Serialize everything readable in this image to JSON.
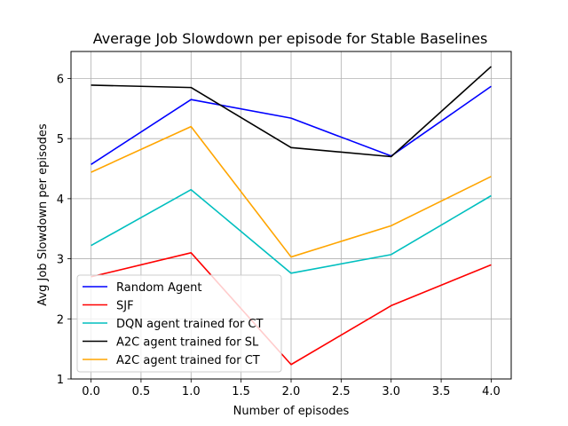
{
  "chart_data": {
    "type": "line",
    "title": "Average Job Slowdown per episode for Stable Baselines",
    "xlabel": "Number of episodes",
    "ylabel": "Avg Job Slowdown per episodes",
    "x": [
      0,
      1,
      2,
      3,
      4
    ],
    "xlim": [
      -0.2,
      4.2
    ],
    "ylim": [
      1.0,
      6.45
    ],
    "xticks": [
      0.0,
      0.5,
      1.0,
      1.5,
      2.0,
      2.5,
      3.0,
      3.5,
      4.0
    ],
    "xtick_labels": [
      "0.0",
      "0.5",
      "1.0",
      "1.5",
      "2.0",
      "2.5",
      "3.0",
      "3.5",
      "4.0"
    ],
    "yticks": [
      1,
      2,
      3,
      4,
      5,
      6
    ],
    "ytick_labels": [
      "1",
      "2",
      "3",
      "4",
      "5",
      "6"
    ],
    "grid": true,
    "legend_position": "lower-left",
    "series": [
      {
        "name": "Random Agent",
        "color": "#0000ff",
        "values": [
          4.57,
          5.65,
          5.34,
          4.71,
          5.87
        ]
      },
      {
        "name": "SJF",
        "color": "#ff0000",
        "values": [
          2.7,
          3.1,
          1.24,
          2.22,
          2.9
        ]
      },
      {
        "name": "DQN agent trained for CT",
        "color": "#00bfbf",
        "values": [
          3.22,
          4.15,
          2.76,
          3.07,
          4.05
        ]
      },
      {
        "name": "A2C agent trained for SL",
        "color": "#000000",
        "values": [
          5.89,
          5.85,
          4.85,
          4.7,
          6.2
        ]
      },
      {
        "name": "A2C agent trained for CT",
        "color": "#ffa500",
        "values": [
          4.44,
          5.2,
          3.03,
          3.55,
          4.37
        ]
      }
    ]
  }
}
